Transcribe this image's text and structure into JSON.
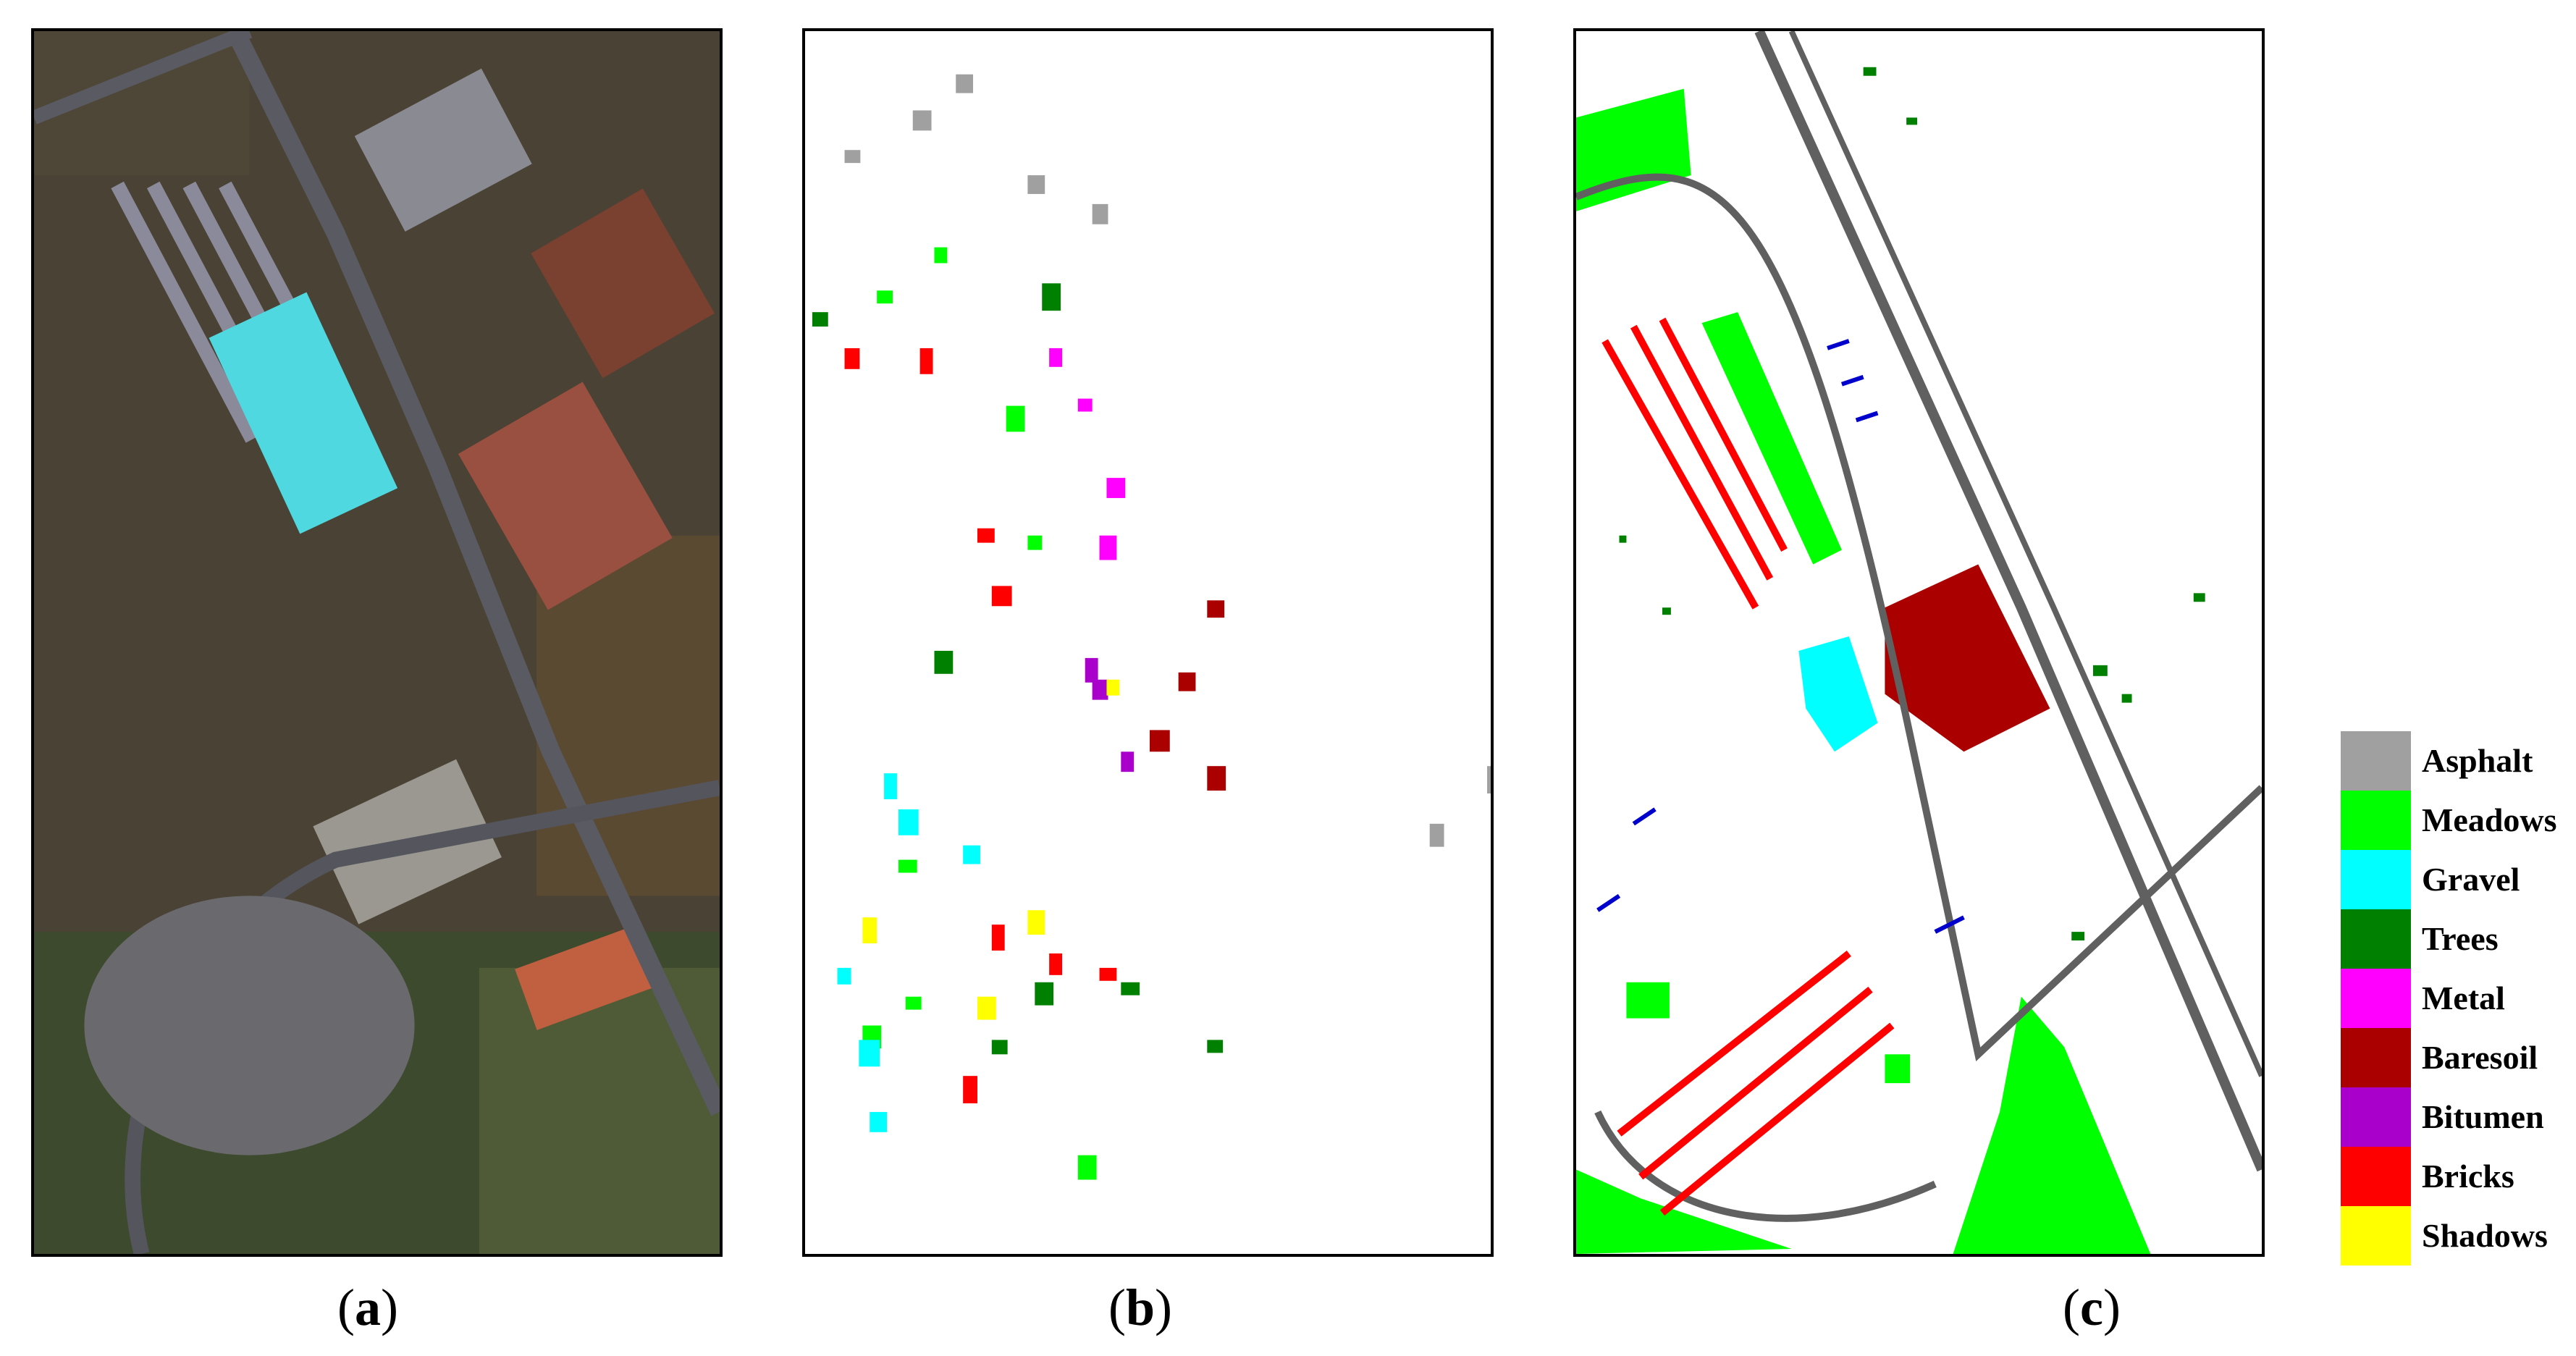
{
  "captions": [
    {
      "open": "(",
      "letter": "a",
      "close": ")"
    },
    {
      "open": "(",
      "letter": "b",
      "close": ")"
    },
    {
      "open": "(",
      "letter": "c",
      "close": ")"
    }
  ],
  "legend": {
    "items": [
      {
        "label": "Asphalt",
        "color": "#a0a0a0"
      },
      {
        "label": "Meadows",
        "color": "#00ff00"
      },
      {
        "label": "Gravel",
        "color": "#00ffff"
      },
      {
        "label": "Trees",
        "color": "#008000"
      },
      {
        "label": "Metal",
        "color": "#ff00ff"
      },
      {
        "label": "Baresoil",
        "color": "#aa0000"
      },
      {
        "label": "Bitumen",
        "color": "#aa00cc"
      },
      {
        "label": "Bricks",
        "color": "#ff0000"
      },
      {
        "label": "Shadows",
        "color": "#ffff00"
      }
    ]
  }
}
